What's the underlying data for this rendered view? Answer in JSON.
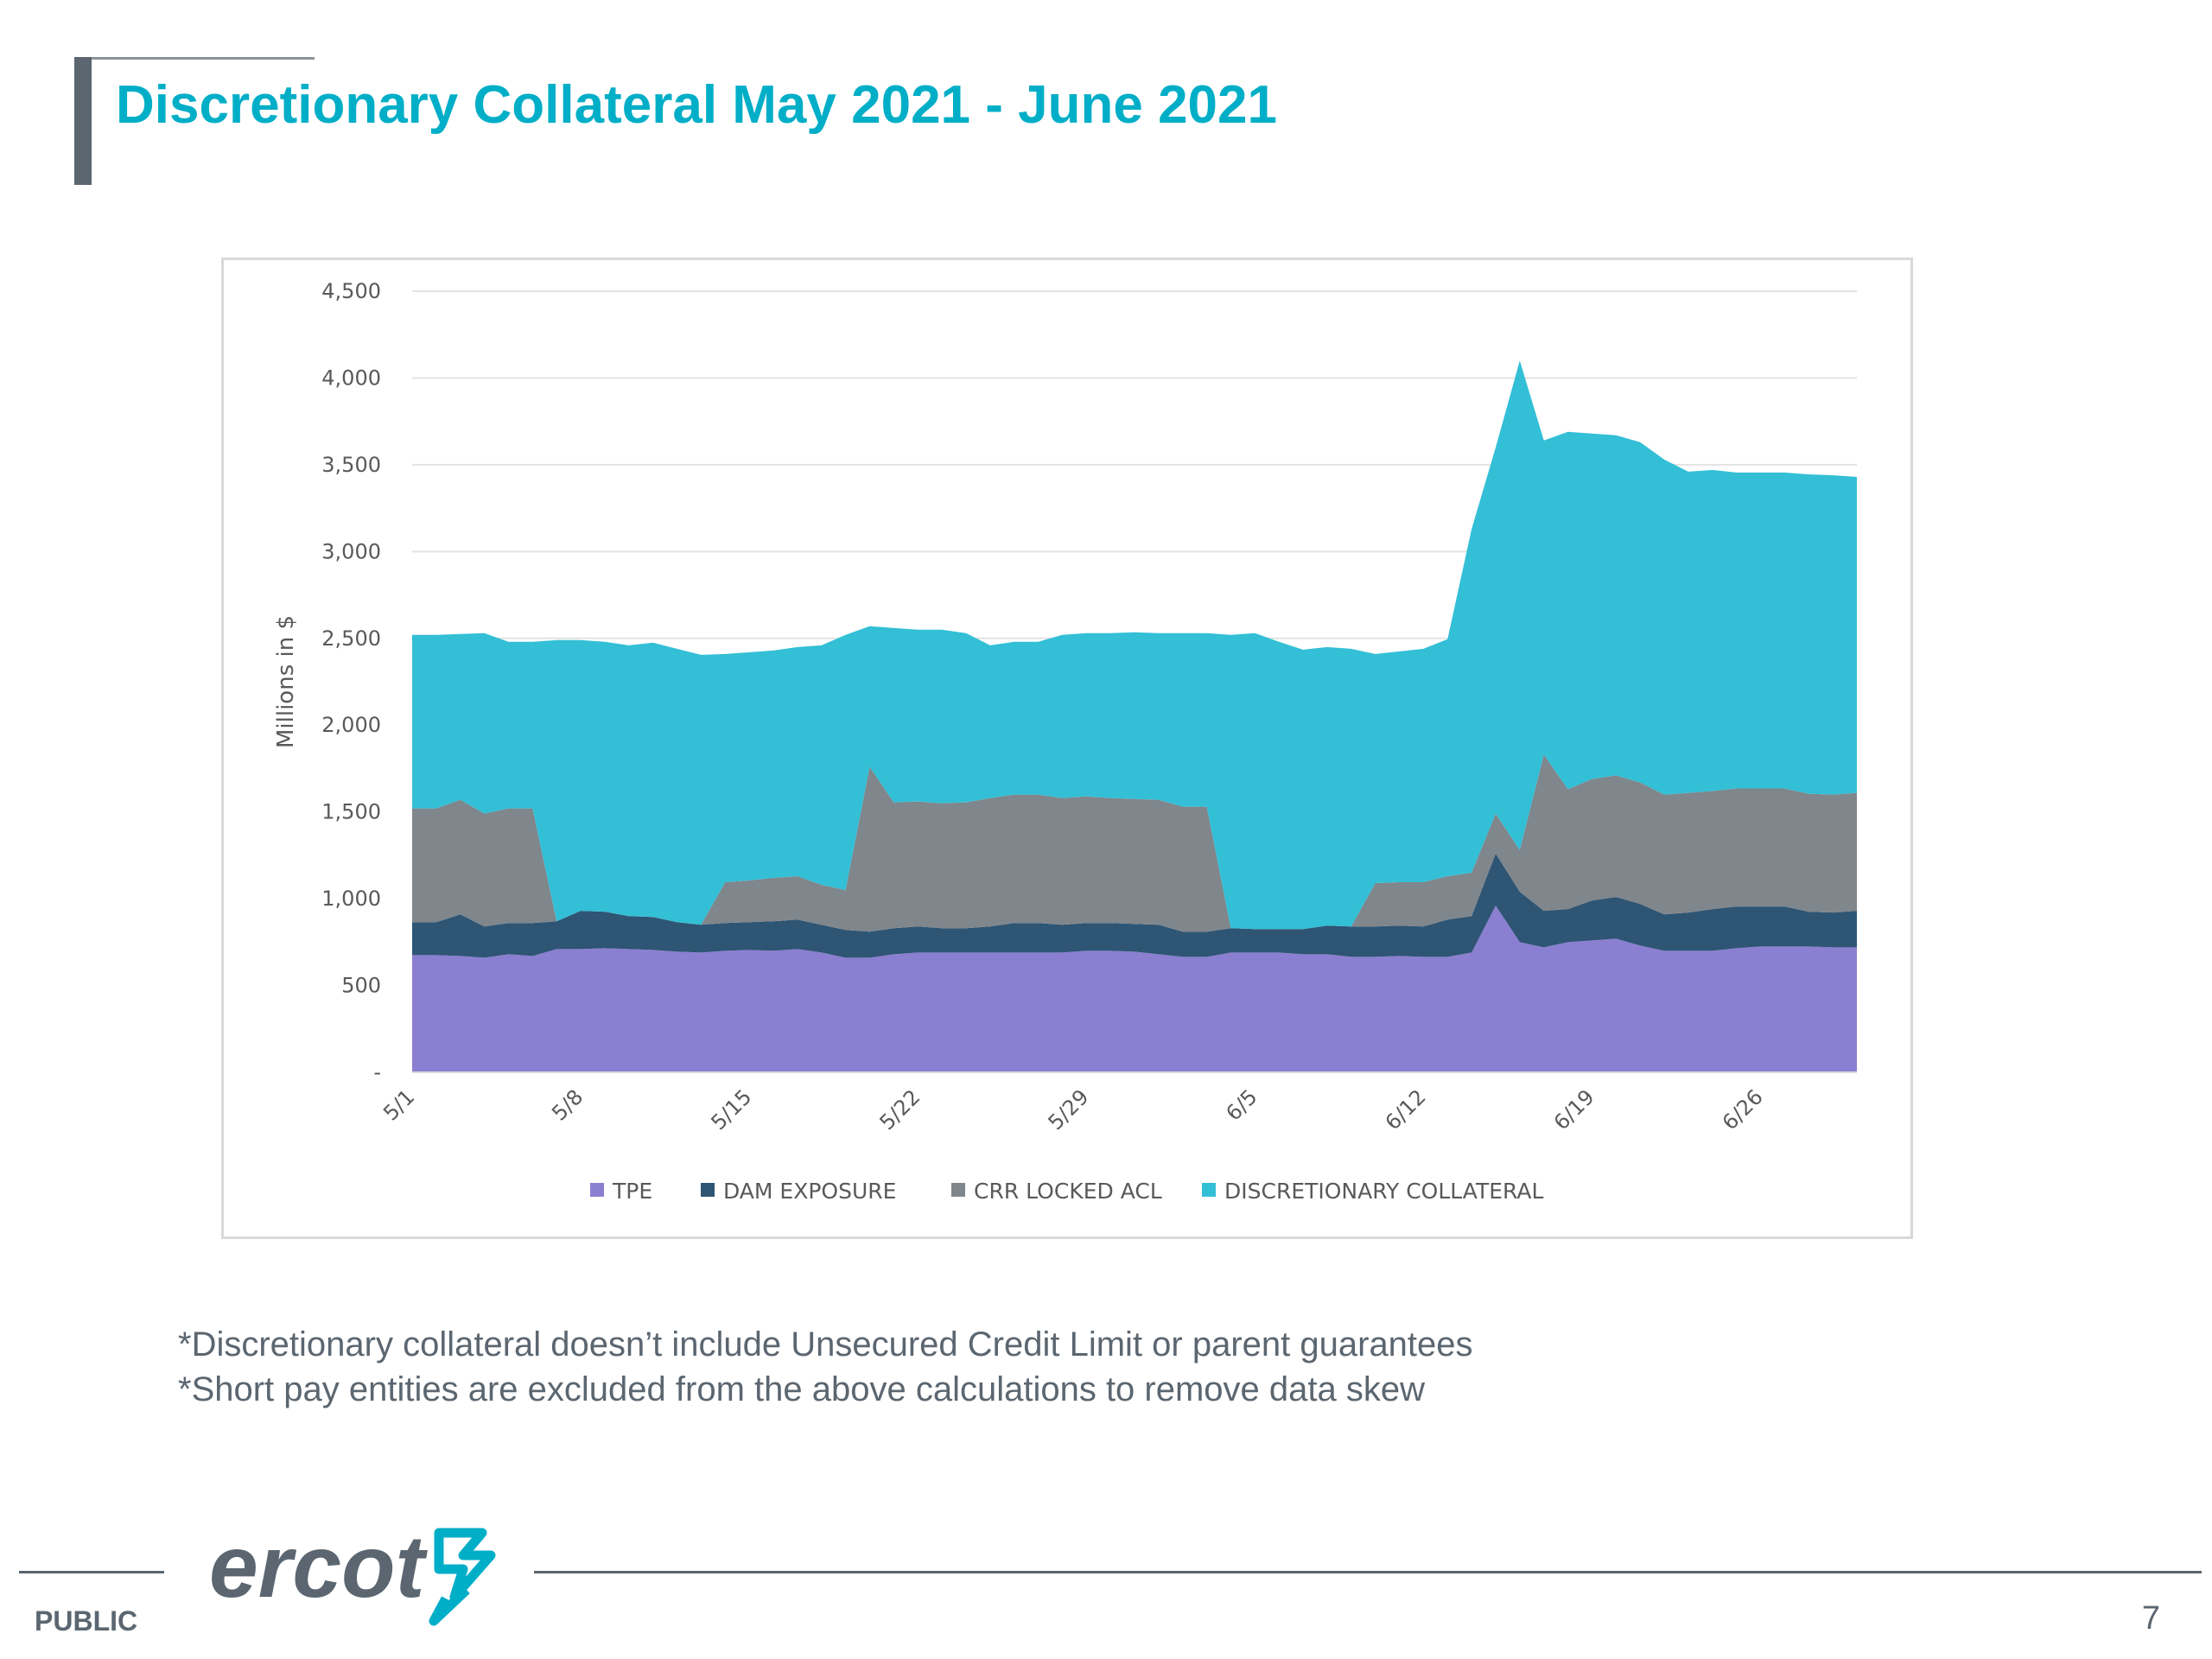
{
  "slide": {
    "title": "Discretionary Collateral May 2021 - June 2021",
    "footnotes": [
      "*Discretionary collateral doesn’t include Unsecured Credit Limit or parent guarantees",
      "*Short pay entities are excluded from the above calculations to remove data skew"
    ],
    "footer_label": "PUBLIC",
    "page_number": "7",
    "logo_text": "ercot",
    "accent_color": "#00aec7",
    "text_color": "#5b6670"
  },
  "chart_data": {
    "type": "area",
    "stacked": true,
    "title": "",
    "xlabel": "",
    "ylabel": "Millions in $",
    "ylim": [
      0,
      4500
    ],
    "y_ticks": [
      {
        "value": 0,
        "label": "-"
      },
      {
        "value": 500,
        "label": "500"
      },
      {
        "value": 1000,
        "label": "1,000"
      },
      {
        "value": 1500,
        "label": "1,500"
      },
      {
        "value": 2000,
        "label": "2,000"
      },
      {
        "value": 2500,
        "label": "2,500"
      },
      {
        "value": 3000,
        "label": "3,000"
      },
      {
        "value": 3500,
        "label": "3,500"
      },
      {
        "value": 4000,
        "label": "4,000"
      },
      {
        "value": 4500,
        "label": "4,500"
      }
    ],
    "grid": true,
    "legend_position": "bottom",
    "x": [
      "5/1",
      "5/2",
      "5/3",
      "5/4",
      "5/5",
      "5/6",
      "5/7",
      "5/8",
      "5/9",
      "5/10",
      "5/11",
      "5/12",
      "5/13",
      "5/14",
      "5/15",
      "5/16",
      "5/17",
      "5/18",
      "5/19",
      "5/20",
      "5/21",
      "5/22",
      "5/23",
      "5/24",
      "5/25",
      "5/26",
      "5/27",
      "5/28",
      "5/29",
      "5/30",
      "5/31",
      "6/1",
      "6/2",
      "6/3",
      "6/4",
      "6/5",
      "6/6",
      "6/7",
      "6/8",
      "6/9",
      "6/10",
      "6/11",
      "6/12",
      "6/13",
      "6/14",
      "6/15",
      "6/16",
      "6/17",
      "6/18",
      "6/19",
      "6/20",
      "6/21",
      "6/22",
      "6/23",
      "6/24",
      "6/25",
      "6/26",
      "6/27",
      "6/28",
      "6/29",
      "6/30"
    ],
    "x_tick_labels": [
      "5/1",
      "5/8",
      "5/15",
      "5/22",
      "5/29",
      "6/5",
      "6/12",
      "6/19",
      "6/26"
    ],
    "series": [
      {
        "name": "TPE",
        "color": "#8a7fd1",
        "values": [
          675,
          675,
          670,
          660,
          680,
          670,
          710,
          710,
          715,
          710,
          705,
          695,
          690,
          700,
          705,
          700,
          710,
          690,
          660,
          660,
          680,
          690,
          690,
          690,
          690,
          690,
          690,
          690,
          700,
          700,
          695,
          680,
          665,
          665,
          690,
          690,
          690,
          680,
          680,
          665,
          665,
          670,
          665,
          665,
          690,
          960,
          750,
          720,
          750,
          760,
          770,
          730,
          700,
          700,
          700,
          715,
          725,
          725,
          725,
          720,
          720
        ]
      },
      {
        "name": "DAM EXPOSURE",
        "color": "#2e5574",
        "values": [
          190,
          190,
          240,
          180,
          180,
          190,
          160,
          220,
          210,
          190,
          190,
          170,
          160,
          160,
          160,
          170,
          170,
          160,
          160,
          150,
          150,
          150,
          140,
          140,
          150,
          170,
          170,
          160,
          160,
          160,
          160,
          170,
          145,
          145,
          140,
          135,
          135,
          145,
          165,
          175,
          175,
          175,
          175,
          215,
          210,
          300,
          290,
          210,
          190,
          230,
          240,
          240,
          210,
          220,
          240,
          240,
          230,
          230,
          200,
          200,
          210
        ]
      },
      {
        "name": "CRR LOCKED ACL",
        "color": "#7f868c",
        "values": [
          655,
          655,
          660,
          650,
          660,
          660,
          0,
          0,
          0,
          0,
          0,
          0,
          0,
          235,
          240,
          250,
          250,
          230,
          230,
          950,
          725,
          720,
          720,
          725,
          740,
          740,
          740,
          730,
          730,
          720,
          720,
          720,
          720,
          720,
          0,
          0,
          0,
          0,
          0,
          0,
          250,
          250,
          255,
          250,
          250,
          230,
          240,
          900,
          690,
          700,
          700,
          700,
          690,
          690,
          680,
          680,
          680,
          680,
          680,
          680,
          680
        ]
      },
      {
        "name": "DISCRETIONARY COLLATERAL",
        "color": "#33bfd6",
        "values": [
          1000,
          1000,
          955,
          1040,
          960,
          960,
          1620,
          1560,
          1555,
          1560,
          1580,
          1575,
          1555,
          1315,
          1315,
          1310,
          1320,
          1380,
          1470,
          810,
          1005,
          990,
          1000,
          975,
          880,
          880,
          880,
          940,
          940,
          950,
          960,
          960,
          1000,
          1000,
          1690,
          1705,
          1655,
          1610,
          1605,
          1600,
          1320,
          1330,
          1345,
          1365,
          1980,
          2110,
          2820,
          1810,
          2060,
          1990,
          1960,
          1960,
          1930,
          1850,
          1850,
          1820,
          1820,
          1820,
          1840,
          1840,
          1820
        ]
      }
    ]
  }
}
